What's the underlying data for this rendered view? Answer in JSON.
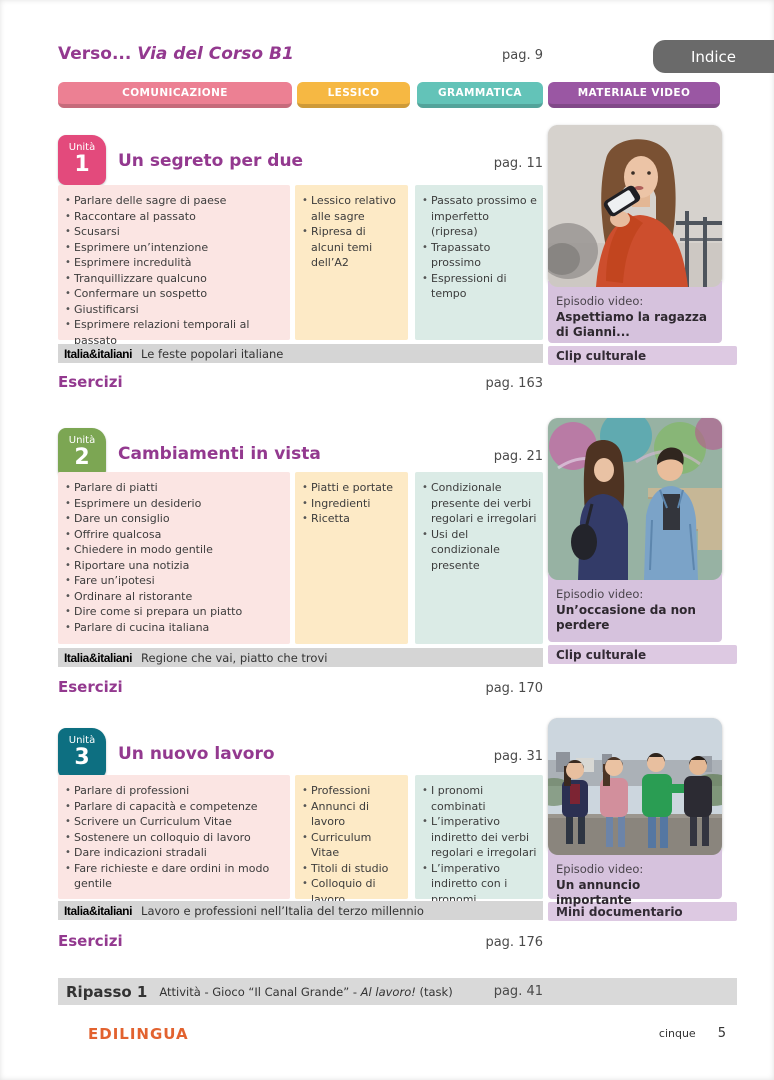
{
  "header": {
    "title_prefix": "Verso...",
    "title_name": " Via del Corso B1",
    "page_ref": "pag. 9",
    "indice_button": "Indice"
  },
  "tabs": [
    {
      "label": "COMUNICAZIONE",
      "color": "#ec8093"
    },
    {
      "label": "LESSICO",
      "color": "#f6b843"
    },
    {
      "label": "GRAMMATICA",
      "color": "#63c3b8"
    },
    {
      "label": "MATERIALE VIDEO",
      "color": "#9a57a3"
    }
  ],
  "units": [
    {
      "badge_label": "Unità",
      "number": "1",
      "badge_color": "#e34a7c",
      "title": "Un segreto per due",
      "page_ref": "pag. 11",
      "comunicazione": [
        "Parlare delle sagre di paese",
        "Raccontare al passato",
        "Scusarsi",
        "Esprimere un’intenzione",
        "Esprimere incredulità",
        "Tranquillizzare qualcuno",
        "Confermare un sospetto",
        "Giustificarsi",
        "Esprimere relazioni temporali al passato"
      ],
      "lessico": [
        "Lessico relativo alle sagre",
        "Ripresa di alcuni temi dell’A2"
      ],
      "grammatica": [
        "Passato prossimo e imperfetto (ripresa)",
        "Trapassato prossimo",
        "Espressioni di tempo"
      ],
      "italia_label": "Italia&italiani",
      "italia_text": "Le feste popolari italiane",
      "episodio_label": "Episodio video:",
      "episodio_title": "Aspettiamo la ragazza di Gianni...",
      "video_tag": "Clip culturale",
      "esercizi_label": "Esercizi",
      "esercizi_page": "pag. 163"
    },
    {
      "badge_label": "Unità",
      "number": "2",
      "badge_color": "#7ca653",
      "title": "Cambiamenti in vista",
      "page_ref": "pag. 21",
      "comunicazione": [
        "Parlare di piatti",
        "Esprimere un desiderio",
        "Dare un consiglio",
        "Offrire qualcosa",
        "Chiedere in modo gentile",
        "Riportare una notizia",
        "Fare un’ipotesi",
        "Ordinare al ristorante",
        "Dire come si prepara un piatto",
        "Parlare di cucina italiana"
      ],
      "lessico": [
        "Piatti e portate",
        "Ingredienti",
        "Ricetta"
      ],
      "grammatica": [
        "Condizionale presente dei verbi regolari e irregolari",
        "Usi del condizionale presente"
      ],
      "italia_label": "Italia&italiani",
      "italia_text": "Regione che vai, piatto che trovi",
      "episodio_label": "Episodio video:",
      "episodio_title": "Un’occasione da non perdere",
      "video_tag": "Clip culturale",
      "esercizi_label": "Esercizi",
      "esercizi_page": "pag. 170"
    },
    {
      "badge_label": "Unità",
      "number": "3",
      "badge_color": "#0d6f81",
      "title": "Un nuovo lavoro",
      "page_ref": "pag. 31",
      "comunicazione": [
        "Parlare di professioni",
        "Parlare di capacità e competenze",
        "Scrivere un Curriculum Vitae",
        "Sostenere un colloquio di lavoro",
        "Dare indicazioni stradali",
        "Fare richieste e dare ordini in modo gentile"
      ],
      "lessico": [
        "Professioni",
        "Annunci di lavoro",
        "Curriculum Vitae",
        "Titoli di studio",
        "Colloquio di lavoro"
      ],
      "grammatica": [
        "I pronomi combinati",
        "L’imperativo indiretto dei verbi regolari e irregolari",
        "L’imperativo indiretto con i pronomi"
      ],
      "italia_label": "Italia&italiani",
      "italia_text": "Lavoro e professioni nell’Italia del terzo millennio",
      "episodio_label": "Episodio video:",
      "episodio_title": "Un annuncio importante",
      "video_tag": "Mini documentario",
      "esercizi_label": "Esercizi",
      "esercizi_page": "pag. 176"
    }
  ],
  "ripasso": {
    "label": "Ripasso 1",
    "activity_pre": "Attività - Gioco “Il Canal Grande” - ",
    "activity_italic": "Al lavoro!",
    "activity_suffix": " (task)",
    "page_ref": "pag. 41"
  },
  "footer": {
    "logo": "EDILINGUA",
    "page_word": "cinque",
    "page_number": "5"
  },
  "colors": {
    "title_purple": "#93398f",
    "panel_pink": "#fbe5e3",
    "panel_yellow": "#fdeac6",
    "panel_teal": "#dbebe6",
    "episodio_panel_purple": "#d6c2dd",
    "video_tag_purple": "#ddc9e2",
    "gray_bar": "#d5d5d5",
    "indice_gray": "#6a6a6a",
    "logo_orange": "#e2622f"
  }
}
